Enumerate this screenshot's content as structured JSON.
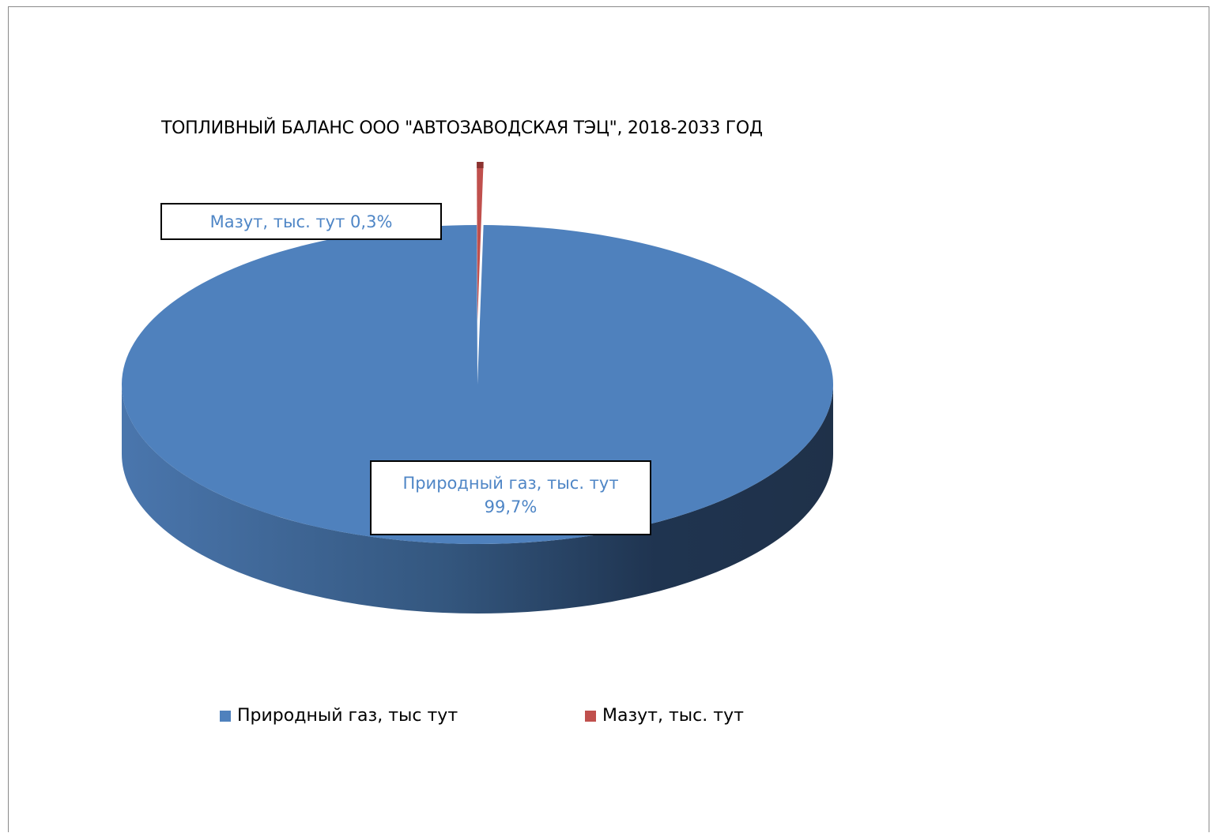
{
  "chart_data": {
    "type": "pie",
    "title": "ТОПЛИВНЫЙ БАЛАНС ООО \"АВТОЗАВОДСКАЯ ТЭЦ\", 2018-2033 ГОД",
    "slices": [
      {
        "legend_label": "Природный газ, тыс тут",
        "data_label_name": "Природный газ, тыс. тут",
        "data_label_value": "99,7%",
        "value": 99.7,
        "color": "#4f81bd"
      },
      {
        "legend_label": "Мазут, тыс. тут",
        "data_label_name": "Мазут, тыс. тут",
        "data_label_value": "0,3%",
        "value": 0.3,
        "color": "#c0504d"
      }
    ],
    "legend_position": "bottom",
    "style": "3d"
  }
}
